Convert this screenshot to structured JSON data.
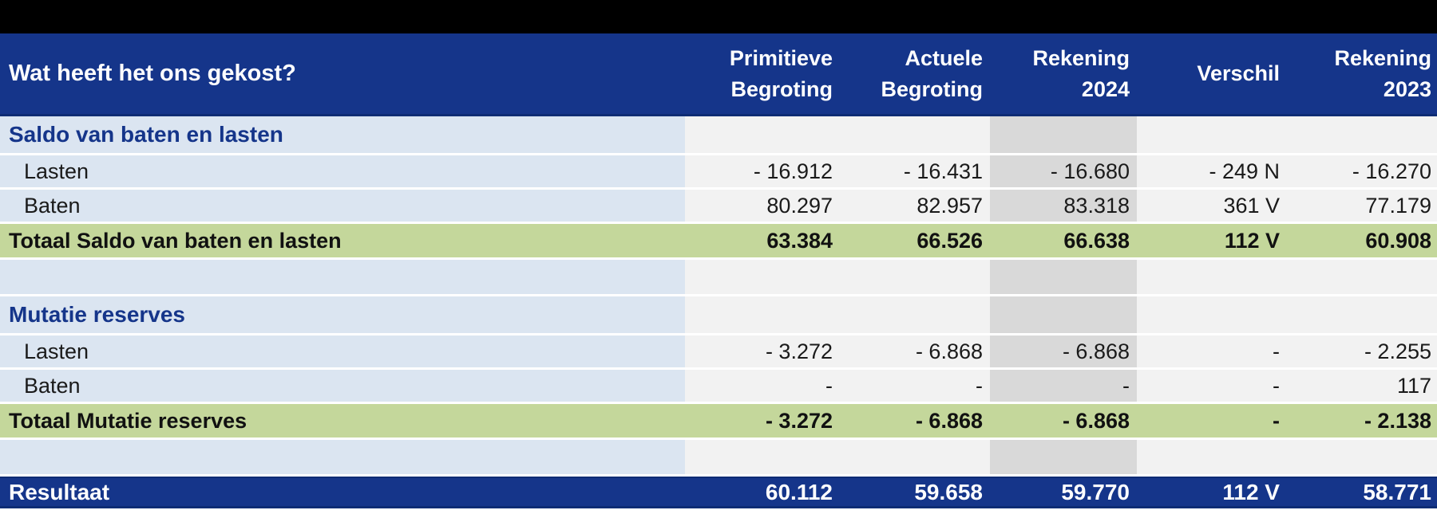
{
  "colors": {
    "top_bar": "#000000",
    "header_bg": "#15358a",
    "header_border": "#0e2c74",
    "header_text": "#ffffff",
    "label_column_bg": "#dbe5f1",
    "section_text": "#15358a",
    "cell_bg": "#f2f2f2",
    "highlight_column_bg": "#d9d9d9",
    "total_row_bg": "#c4d79b",
    "result_row_bg": "#15358a",
    "data_text": "#1a1a1a"
  },
  "table": {
    "title": "Wat heeft het ons gekost?",
    "columns": [
      "Primitieve Begroting",
      "Actuele Begroting",
      "Rekening 2024",
      "Verschil",
      "Rekening 2023"
    ],
    "highlight_column": "Rekening 2024",
    "rows": [
      {
        "type": "section",
        "label": "Saldo van baten en lasten",
        "values": [
          "",
          "",
          "",
          "",
          ""
        ]
      },
      {
        "type": "data",
        "label": "Lasten",
        "values": [
          "- 16.912",
          "- 16.431",
          "- 16.680",
          "- 249 N",
          "- 16.270"
        ]
      },
      {
        "type": "data",
        "label": "Baten",
        "values": [
          "80.297",
          "82.957",
          "83.318",
          "361 V",
          "77.179"
        ]
      },
      {
        "type": "total",
        "label": "Totaal Saldo van baten en lasten",
        "values": [
          "63.384",
          "66.526",
          "66.638",
          "112 V",
          "60.908"
        ]
      },
      {
        "type": "spacer",
        "label": "",
        "values": [
          "",
          "",
          "",
          "",
          ""
        ]
      },
      {
        "type": "section",
        "label": "Mutatie reserves",
        "values": [
          "",
          "",
          "",
          "",
          ""
        ]
      },
      {
        "type": "data",
        "label": "Lasten",
        "values": [
          "- 3.272",
          "- 6.868",
          "- 6.868",
          "-",
          "- 2.255"
        ]
      },
      {
        "type": "data",
        "label": "Baten",
        "values": [
          "-",
          "-",
          "-",
          "-",
          "117"
        ]
      },
      {
        "type": "total",
        "label": "Totaal Mutatie reserves",
        "values": [
          "- 3.272",
          "- 6.868",
          "- 6.868",
          "-",
          "- 2.138"
        ]
      },
      {
        "type": "spacer",
        "label": "",
        "values": [
          "",
          "",
          "",
          "",
          ""
        ]
      },
      {
        "type": "result",
        "label": "Resultaat",
        "values": [
          "60.112",
          "59.658",
          "59.770",
          "112 V",
          "58.771"
        ]
      }
    ]
  }
}
